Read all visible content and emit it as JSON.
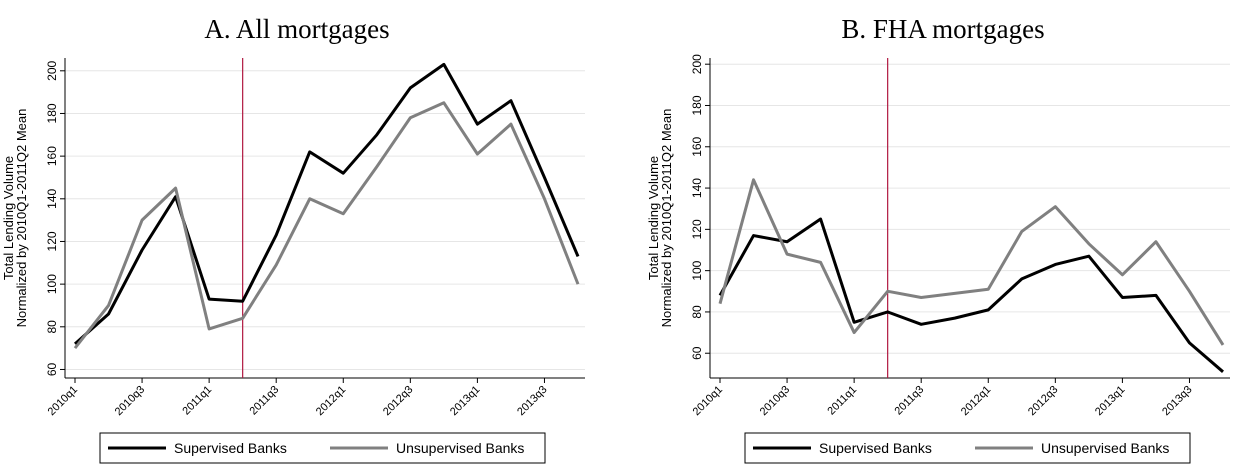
{
  "chart_data": [
    {
      "type": "line",
      "title": "A. All mortgages",
      "ylabel": [
        "Total Lending Volume",
        "Normalized by 2010Q1-2011Q2 Mean"
      ],
      "categories": [
        "2010q1",
        null,
        "2010q3",
        null,
        "2011q1",
        null,
        "2011q3",
        null,
        "2012q1",
        null,
        "2012q3",
        null,
        "2013q1",
        null,
        "2013q3",
        null
      ],
      "series": [
        {
          "name": "Supervised Banks",
          "color": "#000000",
          "values": [
            72,
            86,
            116,
            141,
            93,
            92,
            123,
            162,
            152,
            170,
            192,
            203,
            175,
            186,
            150,
            113
          ]
        },
        {
          "name": "Unsupervised Banks",
          "color": "#808080",
          "values": [
            70,
            90,
            130,
            145,
            79,
            84,
            109,
            140,
            133,
            155,
            178,
            185,
            161,
            175,
            140,
            100
          ]
        }
      ],
      "ylim": [
        56,
        206
      ],
      "yticks": [
        60,
        80,
        100,
        120,
        140,
        160,
        180,
        200
      ],
      "grid": true,
      "vline_index": 5,
      "vline_color": "#b0173f",
      "legend": "bottom"
    },
    {
      "type": "line",
      "title": "B. FHA mortgages",
      "ylabel": [
        "Total Lending Volume",
        "Normalized by 2010Q1-2011Q2 Mean"
      ],
      "categories": [
        "2010q1",
        null,
        "2010q3",
        null,
        "2011q1",
        null,
        "2011q3",
        null,
        "2012q1",
        null,
        "2012q3",
        null,
        "2013q1",
        null,
        "2013q3",
        null
      ],
      "series": [
        {
          "name": "Supervised Banks",
          "color": "#000000",
          "values": [
            88,
            117,
            114,
            125,
            75,
            80,
            74,
            77,
            81,
            96,
            103,
            107,
            87,
            88,
            65,
            51
          ]
        },
        {
          "name": "Unsupervised Banks",
          "color": "#808080",
          "values": [
            84,
            144,
            108,
            104,
            70,
            90,
            87,
            89,
            91,
            119,
            131,
            113,
            98,
            114,
            90,
            64
          ]
        }
      ],
      "ylim": [
        48,
        203
      ],
      "yticks": [
        60,
        80,
        100,
        120,
        140,
        160,
        180,
        200
      ],
      "grid": true,
      "vline_index": 5,
      "vline_color": "#b0173f",
      "legend": "bottom"
    }
  ]
}
